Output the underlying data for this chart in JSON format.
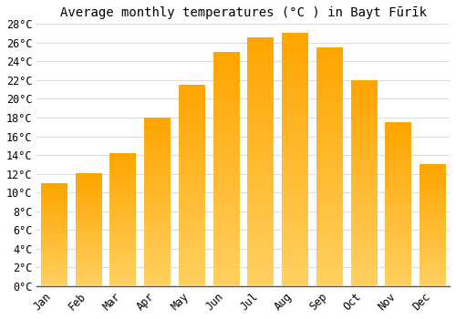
{
  "title": "Average monthly temperatures (°C ) in Bayt Fūrīk",
  "months": [
    "Jan",
    "Feb",
    "Mar",
    "Apr",
    "May",
    "Jun",
    "Jul",
    "Aug",
    "Sep",
    "Oct",
    "Nov",
    "Dec"
  ],
  "values": [
    11.0,
    12.0,
    14.2,
    18.0,
    21.5,
    25.0,
    26.5,
    27.0,
    25.5,
    22.0,
    17.5,
    13.0
  ],
  "bar_color": "#FFA500",
  "bar_color_light": "#FFD060",
  "ylim": [
    0,
    28
  ],
  "ytick_step": 2,
  "background_color": "#ffffff",
  "grid_color": "#dddddd",
  "title_fontsize": 10,
  "tick_fontsize": 8.5
}
